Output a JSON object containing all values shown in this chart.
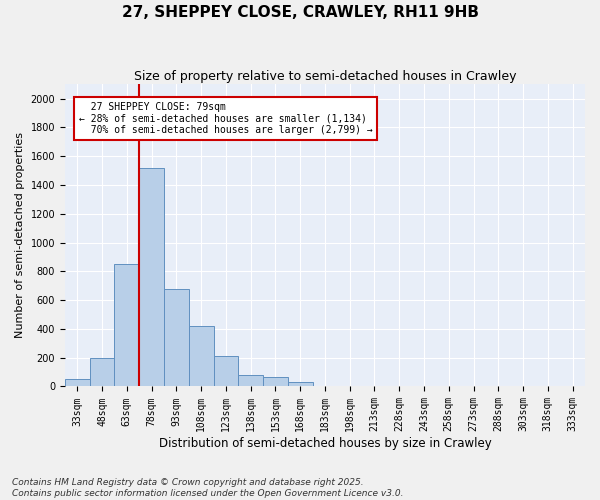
{
  "title": "27, SHEPPEY CLOSE, CRAWLEY, RH11 9HB",
  "subtitle": "Size of property relative to semi-detached houses in Crawley",
  "xlabel": "Distribution of semi-detached houses by size in Crawley",
  "ylabel": "Number of semi-detached properties",
  "categories": [
    "33sqm",
    "48sqm",
    "63sqm",
    "78sqm",
    "93sqm",
    "108sqm",
    "123sqm",
    "138sqm",
    "153sqm",
    "168sqm",
    "183sqm",
    "198sqm",
    "213sqm",
    "228sqm",
    "243sqm",
    "258sqm",
    "273sqm",
    "288sqm",
    "303sqm",
    "318sqm",
    "333sqm"
  ],
  "values": [
    50,
    200,
    850,
    1520,
    680,
    420,
    215,
    80,
    65,
    30,
    0,
    0,
    0,
    0,
    0,
    0,
    0,
    0,
    0,
    0,
    0
  ],
  "bar_color": "#b8cfe8",
  "bar_edgecolor": "#6090c0",
  "vline_color": "#cc0000",
  "annotation_box_color": "#cc0000",
  "property_label": "27 SHEPPEY CLOSE: 79sqm",
  "smaller_pct": "28%",
  "smaller_count": "1,134",
  "larger_pct": "70%",
  "larger_count": "2,799",
  "ylim": [
    0,
    2100
  ],
  "yticks": [
    0,
    200,
    400,
    600,
    800,
    1000,
    1200,
    1400,
    1600,
    1800,
    2000
  ],
  "background_color": "#e8eef8",
  "grid_color": "#ffffff",
  "fig_bg_color": "#f0f0f0",
  "footer": "Contains HM Land Registry data © Crown copyright and database right 2025.\nContains public sector information licensed under the Open Government Licence v3.0.",
  "title_fontsize": 11,
  "subtitle_fontsize": 9,
  "xlabel_fontsize": 8.5,
  "ylabel_fontsize": 8,
  "tick_fontsize": 7,
  "footer_fontsize": 6.5
}
